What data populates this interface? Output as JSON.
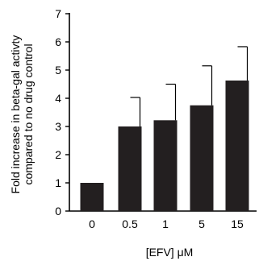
{
  "chart_data": {
    "type": "bar",
    "categories": [
      "0",
      "0.5",
      "1",
      "5",
      "15"
    ],
    "values": [
      1.0,
      3.0,
      3.22,
      3.75,
      4.63
    ],
    "error_upper": [
      0,
      4.03,
      4.5,
      5.15,
      5.83
    ],
    "title": "",
    "xlabel": "[EFV] μM",
    "ylabel_line1": "Fold increase in beta-gal activty",
    "ylabel_line2": "compared to no drug control",
    "ylim": [
      0,
      7
    ],
    "yticks": [
      "0",
      "1",
      "2",
      "3",
      "4",
      "5",
      "6",
      "7"
    ],
    "bar_color": "#231f20",
    "grid": false,
    "legend": "none"
  }
}
